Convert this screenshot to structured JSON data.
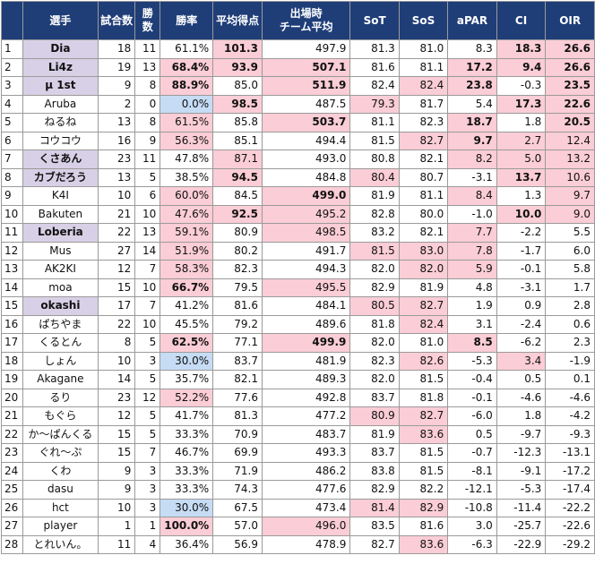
{
  "headers": [
    "",
    "選手",
    "試合数",
    "勝数",
    "勝率",
    "平均得点",
    "出場時\nチーム平均",
    "SoT",
    "SoS",
    "aPAR",
    "CI",
    "OIR"
  ],
  "colors": {
    "header_bg": "#1f3e78",
    "highlight_pink": "#fbcdd6",
    "highlight_blue": "#c6dcf5",
    "highlight_lavender": "#d8d0e6"
  },
  "rows": [
    {
      "idx": "1",
      "name": "Dia",
      "games": "18",
      "wins": "11",
      "rate": "61.1%",
      "avg": "101.3",
      "team": "497.9",
      "sot": "81.3",
      "sos": "81.0",
      "apar": "8.3",
      "ci": "18.3",
      "oir": "26.6"
    },
    {
      "idx": "2",
      "name": "Li4z",
      "games": "19",
      "wins": "13",
      "rate": "68.4%",
      "avg": "93.9",
      "team": "507.1",
      "sot": "81.6",
      "sos": "81.1",
      "apar": "17.2",
      "ci": "9.4",
      "oir": "26.6"
    },
    {
      "idx": "3",
      "name": "μ 1st",
      "games": "9",
      "wins": "8",
      "rate": "88.9%",
      "avg": "85.0",
      "team": "511.9",
      "sot": "82.4",
      "sos": "82.4",
      "apar": "23.8",
      "ci": "-0.3",
      "oir": "23.5"
    },
    {
      "idx": "4",
      "name": "Aruba",
      "games": "2",
      "wins": "0",
      "rate": "0.0%",
      "avg": "98.5",
      "team": "487.5",
      "sot": "79.3",
      "sos": "81.7",
      "apar": "5.4",
      "ci": "17.3",
      "oir": "22.6"
    },
    {
      "idx": "5",
      "name": "ねるね",
      "games": "13",
      "wins": "8",
      "rate": "61.5%",
      "avg": "85.8",
      "team": "503.7",
      "sot": "81.1",
      "sos": "82.3",
      "apar": "18.7",
      "ci": "1.8",
      "oir": "20.5"
    },
    {
      "idx": "6",
      "name": "コウコウ",
      "games": "16",
      "wins": "9",
      "rate": "56.3%",
      "avg": "85.1",
      "team": "494.4",
      "sot": "81.5",
      "sos": "82.7",
      "apar": "9.7",
      "ci": "2.7",
      "oir": "12.4"
    },
    {
      "idx": "7",
      "name": "くさあん",
      "games": "23",
      "wins": "11",
      "rate": "47.8%",
      "avg": "87.1",
      "team": "493.0",
      "sot": "80.8",
      "sos": "82.1",
      "apar": "8.2",
      "ci": "5.0",
      "oir": "13.2"
    },
    {
      "idx": "8",
      "name": "カブだろう",
      "games": "13",
      "wins": "5",
      "rate": "38.5%",
      "avg": "94.5",
      "team": "484.8",
      "sot": "80.4",
      "sos": "80.7",
      "apar": "-3.1",
      "ci": "13.7",
      "oir": "10.6"
    },
    {
      "idx": "9",
      "name": "K4I",
      "games": "10",
      "wins": "6",
      "rate": "60.0%",
      "avg": "84.5",
      "team": "499.0",
      "sot": "81.9",
      "sos": "81.1",
      "apar": "8.4",
      "ci": "1.3",
      "oir": "9.7"
    },
    {
      "idx": "10",
      "name": "Bakuten",
      "games": "21",
      "wins": "10",
      "rate": "47.6%",
      "avg": "92.5",
      "team": "495.2",
      "sot": "82.8",
      "sos": "80.0",
      "apar": "-1.0",
      "ci": "10.0",
      "oir": "9.0"
    },
    {
      "idx": "11",
      "name": "Loberia",
      "games": "22",
      "wins": "13",
      "rate": "59.1%",
      "avg": "80.9",
      "team": "498.5",
      "sot": "83.2",
      "sos": "82.1",
      "apar": "7.7",
      "ci": "-2.2",
      "oir": "5.5"
    },
    {
      "idx": "12",
      "name": "Mus",
      "games": "27",
      "wins": "14",
      "rate": "51.9%",
      "avg": "80.2",
      "team": "491.7",
      "sot": "81.5",
      "sos": "83.0",
      "apar": "7.8",
      "ci": "-1.7",
      "oir": "6.0"
    },
    {
      "idx": "13",
      "name": "AK2KI",
      "games": "12",
      "wins": "7",
      "rate": "58.3%",
      "avg": "82.3",
      "team": "494.3",
      "sot": "82.0",
      "sos": "82.0",
      "apar": "5.9",
      "ci": "-0.1",
      "oir": "5.8"
    },
    {
      "idx": "14",
      "name": "moa",
      "games": "15",
      "wins": "10",
      "rate": "66.7%",
      "avg": "79.5",
      "team": "495.5",
      "sot": "82.9",
      "sos": "81.9",
      "apar": "4.8",
      "ci": "-3.1",
      "oir": "1.7"
    },
    {
      "idx": "15",
      "name": "okashi",
      "games": "17",
      "wins": "7",
      "rate": "41.2%",
      "avg": "81.6",
      "team": "484.1",
      "sot": "80.5",
      "sos": "82.7",
      "apar": "1.9",
      "ci": "0.9",
      "oir": "2.8"
    },
    {
      "idx": "16",
      "name": "ぱちやま",
      "games": "22",
      "wins": "10",
      "rate": "45.5%",
      "avg": "79.2",
      "team": "489.6",
      "sot": "81.8",
      "sos": "82.4",
      "apar": "3.1",
      "ci": "-2.4",
      "oir": "0.6"
    },
    {
      "idx": "17",
      "name": "くるとん",
      "games": "8",
      "wins": "5",
      "rate": "62.5%",
      "avg": "77.1",
      "team": "499.9",
      "sot": "82.0",
      "sos": "81.0",
      "apar": "8.5",
      "ci": "-6.2",
      "oir": "2.3"
    },
    {
      "idx": "18",
      "name": "しょん",
      "games": "10",
      "wins": "3",
      "rate": "30.0%",
      "avg": "83.7",
      "team": "481.9",
      "sot": "82.3",
      "sos": "82.6",
      "apar": "-5.3",
      "ci": "3.4",
      "oir": "-1.9"
    },
    {
      "idx": "19",
      "name": "Akagane",
      "games": "14",
      "wins": "5",
      "rate": "35.7%",
      "avg": "82.1",
      "team": "489.3",
      "sot": "82.0",
      "sos": "81.5",
      "apar": "-0.4",
      "ci": "0.5",
      "oir": "0.1"
    },
    {
      "idx": "20",
      "name": "るり",
      "games": "23",
      "wins": "12",
      "rate": "52.2%",
      "avg": "77.6",
      "team": "492.8",
      "sot": "83.7",
      "sos": "81.8",
      "apar": "-0.1",
      "ci": "-4.6",
      "oir": "-4.6"
    },
    {
      "idx": "21",
      "name": "もぐら",
      "games": "12",
      "wins": "5",
      "rate": "41.7%",
      "avg": "81.3",
      "team": "477.2",
      "sot": "80.9",
      "sos": "82.7",
      "apar": "-6.0",
      "ci": "1.8",
      "oir": "-4.2"
    },
    {
      "idx": "22",
      "name": "か～ぱんくる",
      "games": "15",
      "wins": "5",
      "rate": "33.3%",
      "avg": "70.9",
      "team": "483.7",
      "sot": "81.9",
      "sos": "83.6",
      "apar": "0.5",
      "ci": "-9.7",
      "oir": "-9.3"
    },
    {
      "idx": "23",
      "name": "ぐれ～ぷ",
      "games": "15",
      "wins": "7",
      "rate": "46.7%",
      "avg": "69.9",
      "team": "493.3",
      "sot": "83.7",
      "sos": "81.5",
      "apar": "-0.7",
      "ci": "-12.3",
      "oir": "-13.1"
    },
    {
      "idx": "24",
      "name": "くわ",
      "games": "9",
      "wins": "3",
      "rate": "33.3%",
      "avg": "71.9",
      "team": "486.2",
      "sot": "83.8",
      "sos": "81.5",
      "apar": "-8.1",
      "ci": "-9.1",
      "oir": "-17.2"
    },
    {
      "idx": "25",
      "name": "dasu",
      "games": "9",
      "wins": "3",
      "rate": "33.3%",
      "avg": "74.3",
      "team": "477.6",
      "sot": "82.9",
      "sos": "82.2",
      "apar": "-12.1",
      "ci": "-5.3",
      "oir": "-17.4"
    },
    {
      "idx": "26",
      "name": "hct",
      "games": "10",
      "wins": "3",
      "rate": "30.0%",
      "avg": "67.5",
      "team": "473.4",
      "sot": "81.4",
      "sos": "82.9",
      "apar": "-10.8",
      "ci": "-11.4",
      "oir": "-22.2"
    },
    {
      "idx": "27",
      "name": "player",
      "games": "1",
      "wins": "1",
      "rate": "100.0%",
      "avg": "57.0",
      "team": "496.0",
      "sot": "83.5",
      "sos": "81.6",
      "apar": "3.0",
      "ci": "-25.7",
      "oir": "-22.6"
    },
    {
      "idx": "28",
      "name": "とれいん。",
      "games": "11",
      "wins": "4",
      "rate": "36.4%",
      "avg": "56.9",
      "team": "478.9",
      "sot": "82.7",
      "sos": "83.6",
      "apar": "-6.3",
      "ci": "-22.9",
      "oir": "-29.2"
    }
  ]
}
